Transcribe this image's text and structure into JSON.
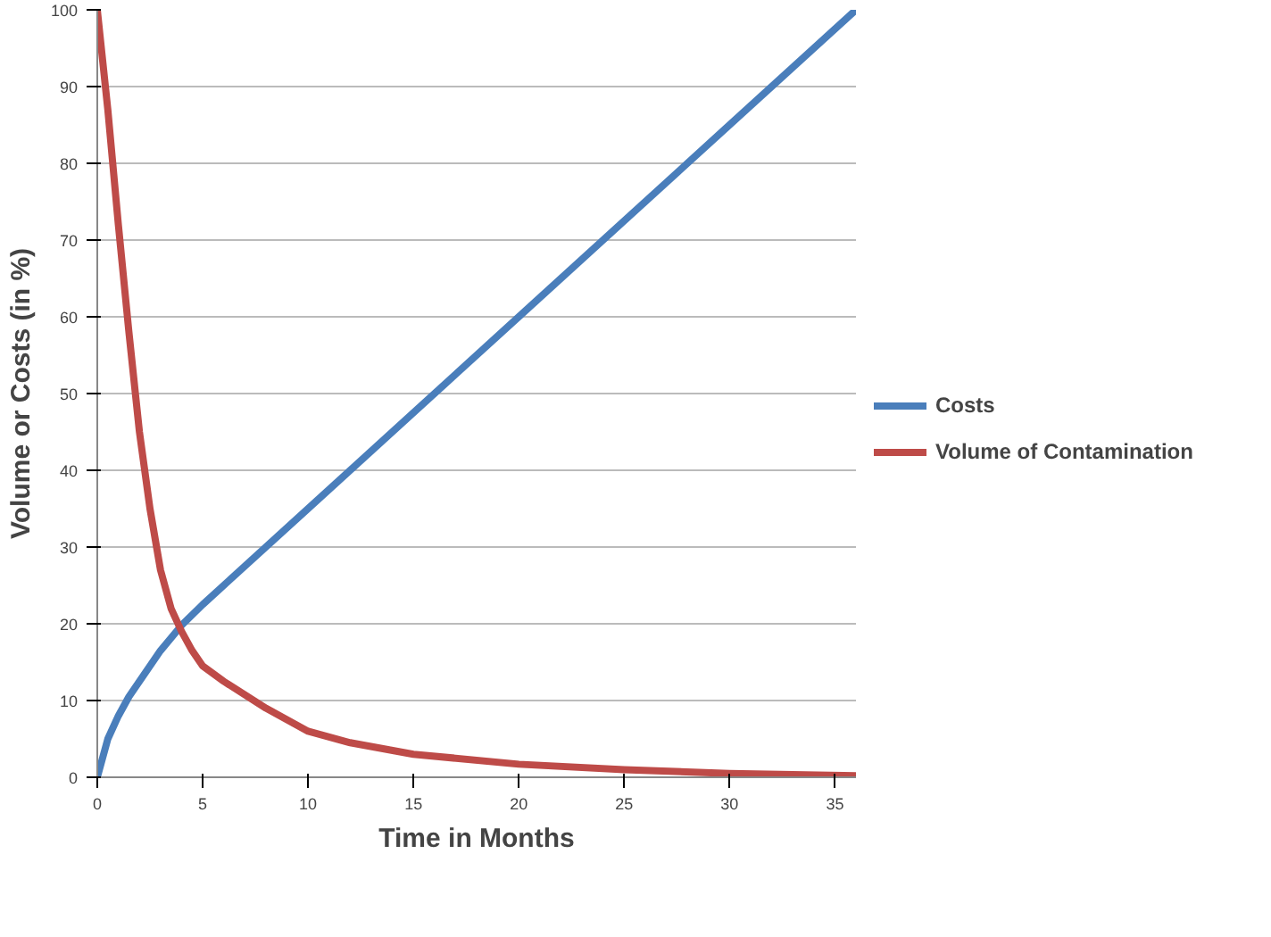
{
  "chart_data": {
    "type": "line",
    "xlabel": "Time in Months",
    "ylabel": "Volume or Costs (in %)",
    "xlim": [
      0,
      36
    ],
    "ylim": [
      0,
      100
    ],
    "xticks": [
      0,
      5,
      10,
      15,
      20,
      25,
      30,
      35
    ],
    "yticks": [
      0,
      10,
      20,
      30,
      40,
      50,
      60,
      70,
      80,
      90,
      100
    ],
    "grid": "y",
    "legend": "right",
    "marker": "none",
    "line_style": "solid",
    "series": [
      {
        "name": "Costs",
        "color": "#4a7ebb",
        "x": [
          0,
          0.5,
          1,
          1.5,
          2,
          3,
          4,
          5,
          10,
          20,
          30,
          36
        ],
        "values": [
          0,
          5,
          8,
          10.5,
          12.5,
          16.5,
          19.8,
          22.5,
          35,
          60,
          85,
          100
        ]
      },
      {
        "name": "Volume of Contamination",
        "color": "#be4b48",
        "x": [
          0,
          0.5,
          1,
          1.5,
          2,
          2.5,
          3,
          3.5,
          4,
          4.5,
          5,
          6,
          8,
          10,
          12,
          15,
          20,
          25,
          30,
          36
        ],
        "values": [
          100,
          87,
          72,
          58,
          45,
          35,
          27,
          22,
          19,
          16.5,
          14.5,
          12.5,
          9,
          6,
          4.5,
          3,
          1.7,
          1,
          0.5,
          0.2
        ]
      }
    ]
  }
}
